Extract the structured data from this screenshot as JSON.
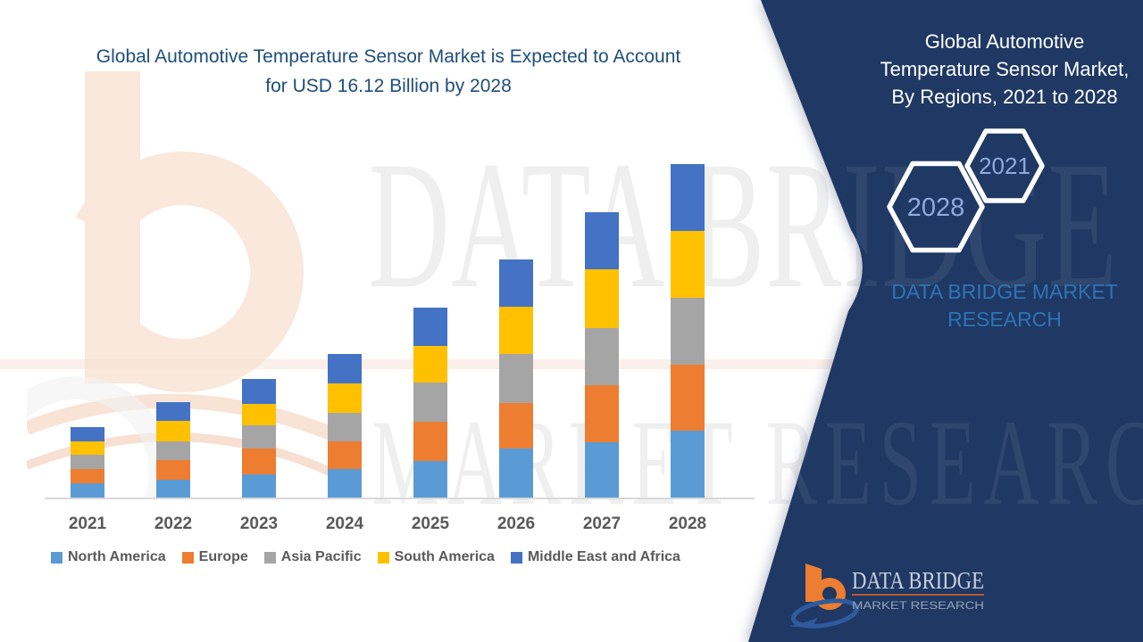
{
  "chart_data": {
    "type": "bar",
    "stacked": true,
    "title": "Global Automotive Temperature Sensor Market is Expected to Account for USD 16.12 Billion by 2028",
    "unit": "USD Billion",
    "categories": [
      "2021",
      "2022",
      "2023",
      "2024",
      "2025",
      "2026",
      "2027",
      "2028"
    ],
    "series": [
      {
        "name": "North America",
        "color": "#5B9BD5",
        "values": [
          0.73,
          0.9,
          1.16,
          1.42,
          1.81,
          2.41,
          2.71,
          3.25
        ]
      },
      {
        "name": "Europe",
        "color": "#ED7D31",
        "values": [
          0.69,
          0.95,
          1.25,
          1.33,
          1.89,
          2.19,
          2.75,
          3.18
        ]
      },
      {
        "name": "Asia Pacific",
        "color": "#A5A5A5",
        "values": [
          0.69,
          0.9,
          1.12,
          1.38,
          1.89,
          2.37,
          2.75,
          3.23
        ]
      },
      {
        "name": "South America",
        "color": "#FFC000",
        "values": [
          0.64,
          0.99,
          1.03,
          1.42,
          1.76,
          2.28,
          2.84,
          3.23
        ]
      },
      {
        "name": "Middle East and Africa",
        "color": "#4472C4",
        "values": [
          0.69,
          0.9,
          1.2,
          1.42,
          1.85,
          2.28,
          2.75,
          3.23
        ]
      }
    ],
    "totals_usd_billion": [
      3.44,
      4.64,
      5.76,
      6.97,
      9.2,
      11.53,
      13.8,
      16.12
    ],
    "ylim": [
      0,
      16.5
    ],
    "gridlines": false,
    "y_axis_labels": false,
    "legend_position": "bottom",
    "xlabel": "",
    "ylabel": ""
  },
  "panel": {
    "title": "Global Automotive Temperature Sensor Market, By Regions, 2021 to 2028",
    "hexagon_back_label": "2021",
    "hexagon_front_label": "2028",
    "caption": "DATA BRIDGE MARKET RESEARCH",
    "logo_brand": "DATA BRIDGE",
    "logo_sub": "MARKET RESEARCH"
  },
  "watermark": {
    "line1": "DATA BRIDGE",
    "line2": "MARKET RESEARCH"
  },
  "colors": {
    "panel_navy": "#1F3864",
    "chart_title": "#1F4E79",
    "caption_blue": "#2E74B5",
    "hexagon_text": "#8EAADC",
    "axis_text": "#595959",
    "axis_line": "#D9D9D9",
    "logo_orange": "#ED7D31",
    "logo_blue": "#2E5B9E"
  }
}
